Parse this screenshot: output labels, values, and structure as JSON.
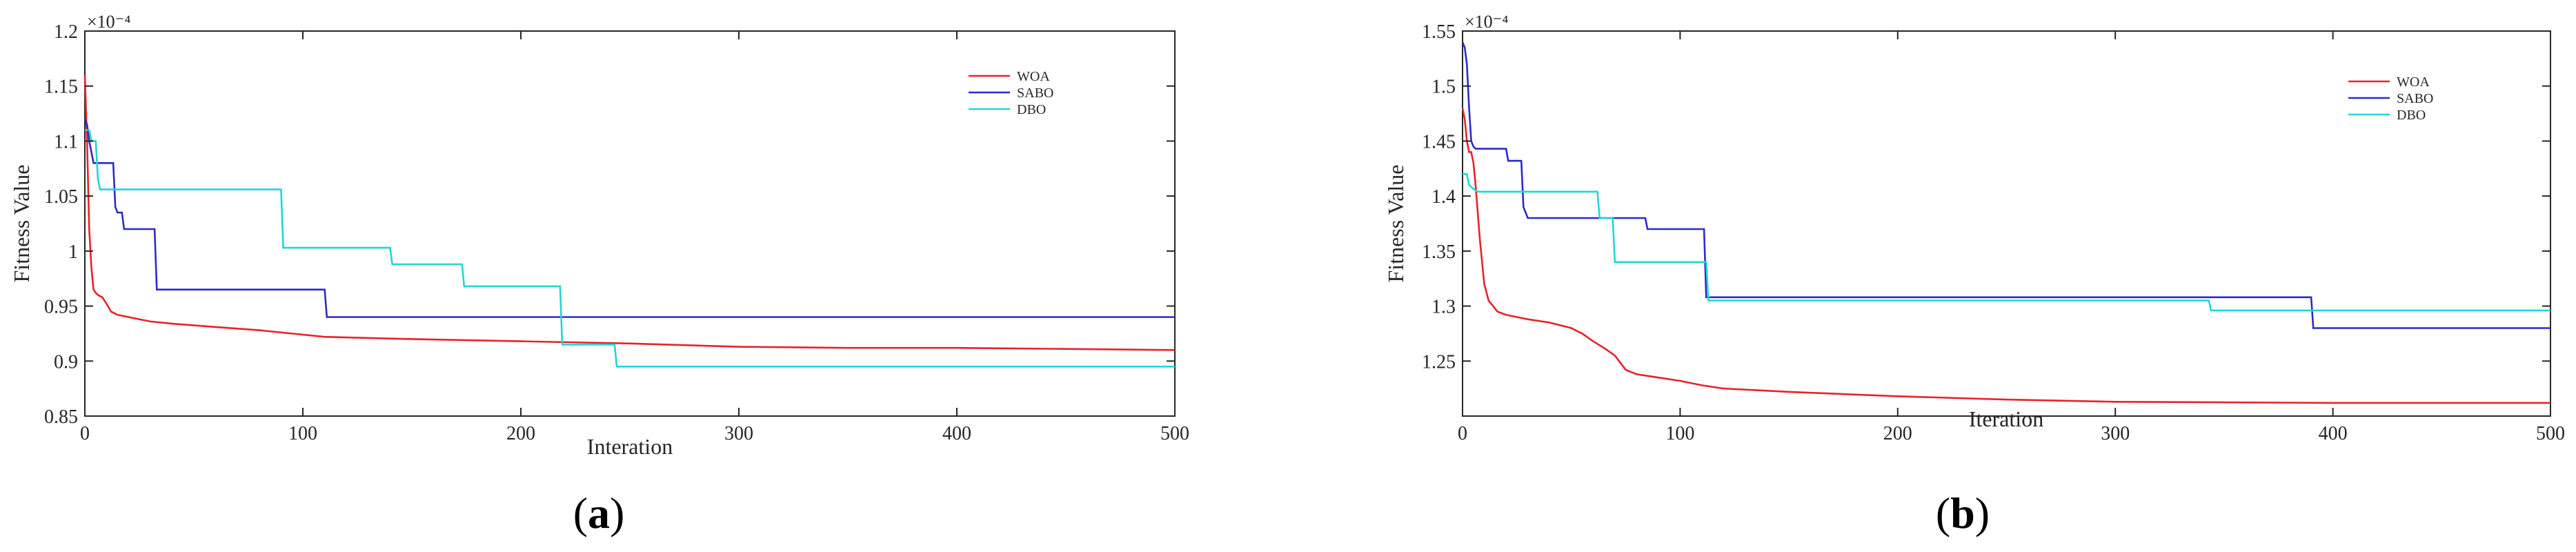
{
  "chart_data": [
    {
      "type": "line",
      "panel_label_letter": "a",
      "xlabel": "Interation",
      "ylabel": "Fitness Value",
      "exponent_label": "×10⁻⁴",
      "xlim": [
        0,
        500
      ],
      "ylim": [
        0.85,
        1.2
      ],
      "xticks": [
        0,
        100,
        200,
        300,
        400,
        500
      ],
      "yticks": [
        0.85,
        0.9,
        0.95,
        1,
        1.05,
        1.1,
        1.15,
        1.2
      ],
      "ytick_labels": [
        "0.85",
        "0.9",
        "0.95",
        "1",
        "1.05",
        "1.1",
        "1.15",
        "1.2"
      ],
      "grid": false,
      "legend_position": "top-right",
      "series": [
        {
          "name": "WOA",
          "color": "#e8222a",
          "x": [
            0,
            1,
            2,
            3,
            4,
            5,
            6,
            8,
            10,
            12,
            15,
            20,
            30,
            40,
            60,
            80,
            100,
            110,
            150,
            200,
            250,
            300,
            350,
            400,
            450,
            500
          ],
          "y": [
            1.16,
            1.1,
            1.02,
            0.985,
            0.965,
            0.962,
            0.96,
            0.958,
            0.952,
            0.945,
            0.942,
            0.94,
            0.936,
            0.934,
            0.931,
            0.928,
            0.924,
            0.922,
            0.92,
            0.918,
            0.916,
            0.913,
            0.912,
            0.912,
            0.911,
            0.91
          ]
        },
        {
          "name": "SABO",
          "color": "#2b2bc8",
          "x": [
            0,
            1,
            2,
            3,
            4,
            6,
            13,
            14,
            15,
            17,
            18,
            20,
            32,
            33,
            110,
            111,
            500
          ],
          "y": [
            1.12,
            1.115,
            1.1,
            1.09,
            1.08,
            1.08,
            1.08,
            1.04,
            1.035,
            1.035,
            1.02,
            1.02,
            1.02,
            0.965,
            0.965,
            0.94,
            0.94
          ]
        },
        {
          "name": "DBO",
          "color": "#22d6d6",
          "x": [
            0,
            2,
            3,
            5,
            6,
            7,
            90,
            91,
            140,
            141,
            173,
            174,
            218,
            219,
            243,
            244,
            500
          ],
          "y": [
            1.11,
            1.11,
            1.1,
            1.1,
            1.065,
            1.056,
            1.056,
            1.003,
            1.003,
            0.988,
            0.988,
            0.968,
            0.968,
            0.915,
            0.915,
            0.895,
            0.895
          ]
        }
      ]
    },
    {
      "type": "line",
      "panel_label_letter": "b",
      "xlabel": "Iteration",
      "ylabel": "Fitness Value",
      "exponent_label": "×10⁻⁴",
      "xlim": [
        0,
        500
      ],
      "ylim": [
        1.2,
        1.55
      ],
      "xticks": [
        0,
        100,
        200,
        300,
        400,
        500
      ],
      "yticks": [
        1.25,
        1.3,
        1.35,
        1.4,
        1.45,
        1.5,
        1.55
      ],
      "ytick_labels": [
        "1.25",
        "1.3",
        "1.35",
        "1.4",
        "1.45",
        "1.5",
        "1.55"
      ],
      "grid": false,
      "legend_position": "top-right",
      "series": [
        {
          "name": "WOA",
          "color": "#e8222a",
          "x": [
            0,
            1,
            2,
            3,
            4,
            5,
            6,
            8,
            10,
            12,
            14,
            16,
            20,
            25,
            30,
            40,
            50,
            55,
            60,
            65,
            70,
            75,
            80,
            90,
            100,
            110,
            120,
            150,
            200,
            250,
            300,
            400,
            500
          ],
          "y": [
            1.48,
            1.47,
            1.45,
            1.44,
            1.44,
            1.43,
            1.41,
            1.36,
            1.32,
            1.305,
            1.3,
            1.295,
            1.292,
            1.29,
            1.288,
            1.285,
            1.28,
            1.275,
            1.268,
            1.262,
            1.255,
            1.242,
            1.238,
            1.235,
            1.232,
            1.228,
            1.225,
            1.222,
            1.218,
            1.215,
            1.213,
            1.212,
            1.212
          ]
        },
        {
          "name": "SABO",
          "color": "#2b2bc8",
          "x": [
            0,
            1,
            2,
            3,
            4,
            5,
            6,
            20,
            21,
            27,
            28,
            30,
            84,
            85,
            111,
            112,
            390,
            391,
            500
          ],
          "y": [
            1.54,
            1.535,
            1.52,
            1.48,
            1.45,
            1.445,
            1.443,
            1.443,
            1.432,
            1.432,
            1.39,
            1.38,
            1.38,
            1.37,
            1.37,
            1.308,
            1.308,
            1.28,
            1.28
          ]
        },
        {
          "name": "DBO",
          "color": "#22d6d6",
          "x": [
            0,
            2,
            3,
            6,
            7,
            62,
            63,
            69,
            70,
            112,
            113,
            343,
            344,
            500
          ],
          "y": [
            1.42,
            1.42,
            1.41,
            1.405,
            1.404,
            1.404,
            1.38,
            1.38,
            1.34,
            1.34,
            1.305,
            1.305,
            1.296,
            1.296
          ]
        }
      ]
    }
  ]
}
